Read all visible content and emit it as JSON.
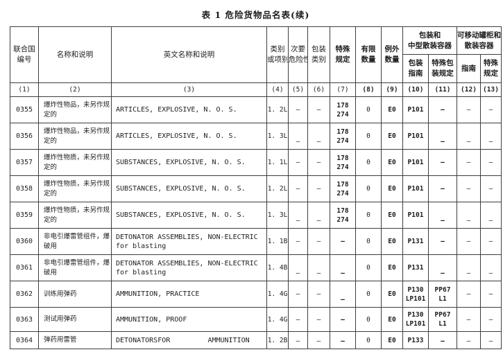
{
  "title": "表 1  危险货物品名表(续)",
  "table": {
    "group_headers": {
      "packaging_ibc": "包装和\n中型散装容器",
      "portable_tanks_bulk": "可移动罐柜和\n散装容器"
    },
    "headers": {
      "un_number": "联合国\n编号",
      "name_description": "名称和说明",
      "english_name_description": "英文名称和说明",
      "class_division": "类别\n或项别",
      "subsidiary_risk": "次要\n危险性",
      "packing_group": "包装\n类别",
      "special_provisions": "特殊\n规定",
      "limited_quantity": "有限\n数量",
      "excepted_quantity": "例外\n数量",
      "packing_instructions": "包装\n指南",
      "special_packing_provisions": "特殊包\n装规定",
      "tank_instructions": "指南",
      "tank_special_provisions": "特殊\n规定"
    },
    "column_numbers": [
      "(1)",
      "(2)",
      "(3)",
      "(4)",
      "(5)",
      "(6)",
      "(7)",
      "(8)",
      "(9)",
      "(10)",
      "(11)",
      "(12)",
      "(13)"
    ],
    "rows": [
      {
        "un": "0355",
        "name_cn": "爆炸性物品，未另作规\n定的",
        "name_en": "ARTICLES, EXPLOSIVE, N. O. S.",
        "class_division": "1. 2L",
        "subsidiary_risk": "—",
        "packing_group": "—",
        "special_provisions": "178\n274",
        "limited_quantity": "0",
        "excepted_quantity": "E0",
        "packing_instructions": "P101",
        "special_packing_provisions": "—",
        "tank_instructions": "—",
        "tank_special_provisions": "—"
      },
      {
        "un": "0356",
        "name_cn": "爆炸性物品，未另作规\n定的",
        "name_en": "ARTICLES, EXPLOSIVE, N. O. S.",
        "class_division": "1. 3L",
        "subsidiary_risk": "—",
        "packing_group": "—",
        "special_provisions": "178\n274",
        "limited_quantity": "0",
        "excepted_quantity": "E0",
        "packing_instructions": "P101",
        "special_packing_provisions": "—",
        "tank_instructions": "—",
        "tank_special_provisions": "—"
      },
      {
        "un": "0357",
        "name_cn": "爆炸性物质，未另作规\n定的",
        "name_en": "SUBSTANCES, EXPLOSIVE, N. O. S.",
        "class_division": "1. 1L",
        "subsidiary_risk": "—",
        "packing_group": "—",
        "special_provisions": "178\n274",
        "limited_quantity": "0",
        "excepted_quantity": "E0",
        "packing_instructions": "P101",
        "special_packing_provisions": "—",
        "tank_instructions": "—",
        "tank_special_provisions": "—"
      },
      {
        "un": "0358",
        "name_cn": "爆炸性物质，未另作规\n定的",
        "name_en": "SUBSTANCES, EXPLOSIVE, N. O. S.",
        "class_division": "1. 2L",
        "subsidiary_risk": "—",
        "packing_group": "—",
        "special_provisions": "178\n274",
        "limited_quantity": "0",
        "excepted_quantity": "E0",
        "packing_instructions": "P101",
        "special_packing_provisions": "—",
        "tank_instructions": "—",
        "tank_special_provisions": "—"
      },
      {
        "un": "0359",
        "name_cn": "爆炸性物质，未另作规\n定的",
        "name_en": "SUBSTANCES, EXPLOSIVE, N. O. S.",
        "class_division": "1. 3L",
        "subsidiary_risk": "—",
        "packing_group": "—",
        "special_provisions": "178\n274",
        "limited_quantity": "0",
        "excepted_quantity": "E0",
        "packing_instructions": "P101",
        "special_packing_provisions": "—",
        "tank_instructions": "—",
        "tank_special_provisions": "—"
      },
      {
        "un": "0360",
        "name_cn": "非电引爆雷管组件，爆\n破用",
        "name_en": "DETONATOR ASSEMBLIES, NON-ELECTRIC\nfor blasting",
        "class_division": "1. 1B",
        "subsidiary_risk": "—",
        "packing_group": "—",
        "special_provisions": "—",
        "limited_quantity": "0",
        "excepted_quantity": "E0",
        "packing_instructions": "P131",
        "special_packing_provisions": "—",
        "tank_instructions": "—",
        "tank_special_provisions": "—"
      },
      {
        "un": "0361",
        "name_cn": "非电引爆雷管组件，爆\n破用",
        "name_en": "DETONATOR ASSEMBLIES, NON-ELECTRIC\nfor blasting",
        "class_division": "1. 4B",
        "subsidiary_risk": "—",
        "packing_group": "—",
        "special_provisions": "—",
        "limited_quantity": "0",
        "excepted_quantity": "E0",
        "packing_instructions": "P131",
        "special_packing_provisions": "—",
        "tank_instructions": "—",
        "tank_special_provisions": "—"
      },
      {
        "un": "0362",
        "name_cn": "训练用弹药",
        "name_en": "AMMUNITION, PRACTICE",
        "class_division": "1. 4G",
        "subsidiary_risk": "—",
        "packing_group": "—",
        "special_provisions": "—",
        "limited_quantity": "0",
        "excepted_quantity": "E0",
        "packing_instructions": "P130\nLP101",
        "special_packing_provisions": "PP67\nL1",
        "tank_instructions": "—",
        "tank_special_provisions": "—"
      },
      {
        "un": "0363",
        "name_cn": "测试用弹药",
        "name_en": "AMMUNITION, PROOF",
        "class_division": "1. 4G",
        "subsidiary_risk": "—",
        "packing_group": "—",
        "special_provisions": "—",
        "limited_quantity": "0",
        "excepted_quantity": "E0",
        "packing_instructions": "P130\nLP101",
        "special_packing_provisions": "PP67\nL1",
        "tank_instructions": "—",
        "tank_special_provisions": "—"
      },
      {
        "un": "0364",
        "name_cn": "弹药用雷管",
        "name_en": "DETONATORSFOR         AMMUNITION",
        "class_division": "1. 2B",
        "subsidiary_risk": "—",
        "packing_group": "—",
        "special_provisions": "—",
        "limited_quantity": "0",
        "excepted_quantity": "E0",
        "packing_instructions": "P133",
        "special_packing_provisions": "—",
        "tank_instructions": "—",
        "tank_special_provisions": "—"
      }
    ]
  }
}
